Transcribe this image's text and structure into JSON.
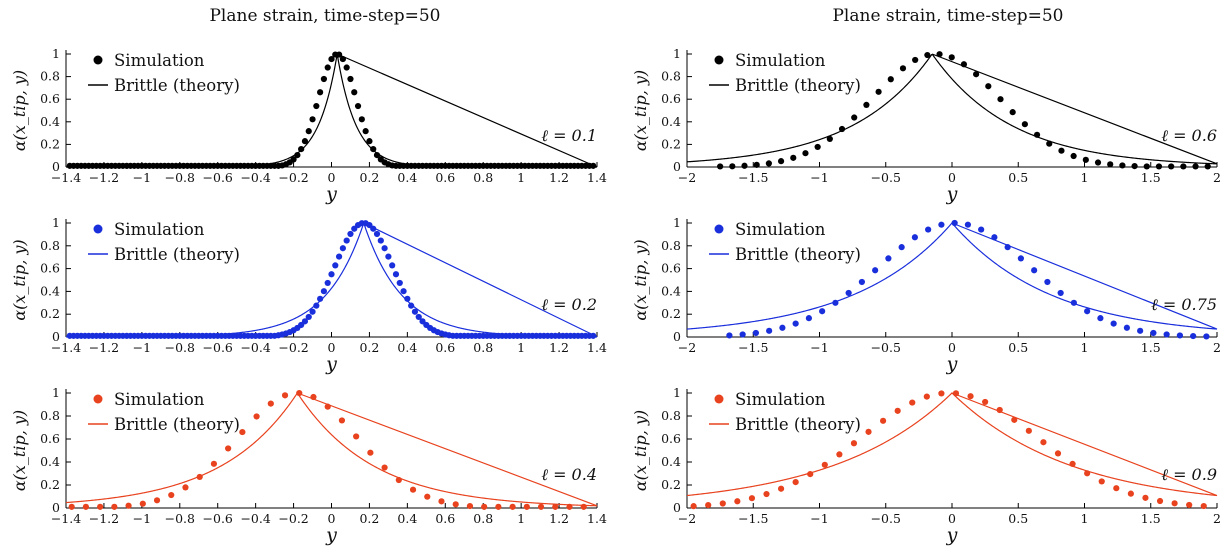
{
  "titles": [
    "Plane strain, time-step=50",
    "Plane strain, time-step=50"
  ],
  "chart_data": [
    {
      "type": "scatter+line",
      "column": 0,
      "row": 0,
      "color": "#000000",
      "ell_label": "ℓ = 0.1",
      "xlabel": "y",
      "ylabel": "α(x_tip, y)",
      "xlim": [
        -1.4,
        1.4
      ],
      "ylim": [
        0,
        1
      ],
      "xticks": [
        -1.4,
        -1.2,
        -1,
        -0.8,
        -0.6,
        -0.4,
        -0.2,
        0,
        0.2,
        0.4,
        0.6,
        0.8,
        1,
        1.2,
        1.4
      ],
      "xtick_labels": [
        "−1.4",
        "−1.2",
        "−1",
        "−0.8",
        "−0.6",
        "−0.4",
        "−0.2",
        "0",
        "0.2",
        "0.4",
        "0.6",
        "0.8",
        "1",
        "1.2",
        "1.4"
      ],
      "yticks": [
        0,
        0.2,
        0.4,
        0.6,
        0.8,
        1
      ],
      "ytick_labels": [
        "0",
        "0.2",
        "0.4",
        "0.6",
        "0.8",
        "1"
      ],
      "legend": [
        "Simulation",
        "Brittle (theory)"
      ],
      "theory": {
        "peak_x": 0.03,
        "width": 0.1
      },
      "simulation": {
        "center": 0.03,
        "width": 0.14,
        "floor": 0.01,
        "x_start": -1.38,
        "x_end": 1.38,
        "step": 0.02
      }
    },
    {
      "type": "scatter+line",
      "column": 0,
      "row": 1,
      "color": "#1a2fdc",
      "ell_label": "ℓ = 0.2",
      "xlabel": "y",
      "ylabel": "α(x_tip, y)",
      "xlim": [
        -1.4,
        1.4
      ],
      "ylim": [
        0,
        1
      ],
      "xticks": [
        -1.4,
        -1.2,
        -1,
        -0.8,
        -0.6,
        -0.4,
        -0.2,
        0,
        0.2,
        0.4,
        0.6,
        0.8,
        1,
        1.2,
        1.4
      ],
      "xtick_labels": [
        "−1.4",
        "−1.2",
        "−1",
        "−0.8",
        "−0.6",
        "−0.4",
        "−0.2",
        "0",
        "0.2",
        "0.4",
        "0.6",
        "0.8",
        "1",
        "1.2",
        "1.4"
      ],
      "yticks": [
        0,
        0.2,
        0.4,
        0.6,
        0.8,
        1
      ],
      "ytick_labels": [
        "0",
        "0.2",
        "0.4",
        "0.6",
        "0.8",
        "1"
      ],
      "legend": [
        "Simulation",
        "Brittle (theory)"
      ],
      "theory": {
        "peak_x": 0.17,
        "width": 0.2
      },
      "simulation": {
        "center": 0.17,
        "width": 0.22,
        "floor": 0.01,
        "x_start": -1.38,
        "x_end": 1.38,
        "step": 0.02
      }
    },
    {
      "type": "scatter+line",
      "column": 0,
      "row": 2,
      "color": "#e8421e",
      "ell_label": "ℓ = 0.4",
      "xlabel": "y",
      "ylabel": "α(x_tip, y)",
      "xlim": [
        -1.4,
        1.4
      ],
      "ylim": [
        0,
        1
      ],
      "xticks": [
        -1.4,
        -1.2,
        -1,
        -0.8,
        -0.6,
        -0.4,
        -0.2,
        0,
        0.2,
        0.4,
        0.6,
        0.8,
        1,
        1.2,
        1.4
      ],
      "xtick_labels": [
        "−1.4",
        "−1.2",
        "−1",
        "−0.8",
        "−0.6",
        "−0.4",
        "−0.2",
        "0",
        "0.2",
        "0.4",
        "0.6",
        "0.8",
        "1",
        "1.2",
        "1.4"
      ],
      "yticks": [
        0,
        0.2,
        0.4,
        0.6,
        0.8,
        1
      ],
      "ytick_labels": [
        "0",
        "0.2",
        "0.4",
        "0.6",
        "0.8",
        "1"
      ],
      "legend": [
        "Simulation",
        "Brittle (theory)"
      ],
      "theory": {
        "peak_x": -0.18,
        "width": 0.4
      },
      "simulation": {
        "center": -0.18,
        "width": 0.45,
        "floor": 0.01,
        "x_start": -1.37,
        "x_end": 1.38,
        "step": 0.075
      }
    },
    {
      "type": "scatter+line",
      "column": 1,
      "row": 0,
      "color": "#000000",
      "ell_label": "ℓ = 0.6",
      "xlabel": "y",
      "ylabel": "α(x_tip, y)",
      "xlim": [
        -2,
        2
      ],
      "ylim": [
        0,
        1
      ],
      "xticks": [
        -2,
        -1.5,
        -1,
        -0.5,
        0,
        0.5,
        1,
        1.5,
        2
      ],
      "xtick_labels": [
        "−2",
        "−1.5",
        "−1",
        "−0.5",
        "0",
        "0.5",
        "1",
        "1.5",
        "2"
      ],
      "yticks": [
        0,
        0.2,
        0.4,
        0.6,
        0.8,
        1
      ],
      "ytick_labels": [
        "0",
        "0.2",
        "0.4",
        "0.6",
        "0.8",
        "1"
      ],
      "legend": [
        "Simulation",
        "Brittle (theory)"
      ],
      "theory": {
        "peak_x": -0.15,
        "width": 0.6
      },
      "simulation": {
        "center": -0.12,
        "width": 0.68,
        "floor": 0.005,
        "x_start": -1.75,
        "x_end": 1.95,
        "step": 0.092
      }
    },
    {
      "type": "scatter+line",
      "column": 1,
      "row": 1,
      "color": "#1a2fdc",
      "ell_label": "ℓ = 0.75",
      "xlabel": "y",
      "ylabel": "α(x_tip, y)",
      "xlim": [
        -2,
        2
      ],
      "ylim": [
        0,
        1
      ],
      "xticks": [
        -2,
        -1.5,
        -1,
        -0.5,
        0,
        0.5,
        1,
        1.5,
        2
      ],
      "xtick_labels": [
        "−2",
        "−1.5",
        "−1",
        "−0.5",
        "0",
        "0.5",
        "1",
        "1.5",
        "2"
      ],
      "yticks": [
        0,
        0.2,
        0.4,
        0.6,
        0.8,
        1
      ],
      "ytick_labels": [
        "0",
        "0.2",
        "0.4",
        "0.6",
        "0.8",
        "1"
      ],
      "legend": [
        "Simulation",
        "Brittle (theory)"
      ],
      "theory": {
        "peak_x": 0.0,
        "width": 0.75
      },
      "simulation": {
        "center": 0.02,
        "width": 0.82,
        "floor": 0.005,
        "x_start": -1.68,
        "x_end": 1.95,
        "step": 0.1
      }
    },
    {
      "type": "scatter+line",
      "column": 1,
      "row": 2,
      "color": "#e8421e",
      "ell_label": "ℓ = 0.9",
      "xlabel": "y",
      "ylabel": "α(x_tip, y)",
      "xlim": [
        -2,
        2
      ],
      "ylim": [
        0,
        1
      ],
      "xticks": [
        -2,
        -1.5,
        -1,
        -0.5,
        0,
        0.5,
        1,
        1.5,
        2
      ],
      "xtick_labels": [
        "−2",
        "−1.5",
        "−1",
        "−0.5",
        "0",
        "0.5",
        "1",
        "1.5",
        "2"
      ],
      "yticks": [
        0,
        0.2,
        0.4,
        0.6,
        0.8,
        1
      ],
      "ytick_labels": [
        "0",
        "0.2",
        "0.4",
        "0.6",
        "0.8",
        "1"
      ],
      "legend": [
        "Simulation",
        "Brittle (theory)"
      ],
      "theory": {
        "peak_x": 0.0,
        "width": 0.9
      },
      "simulation": {
        "center": -0.02,
        "width": 0.95,
        "floor": 0.005,
        "x_start": -1.95,
        "x_end": 1.95,
        "step": 0.11
      }
    }
  ]
}
